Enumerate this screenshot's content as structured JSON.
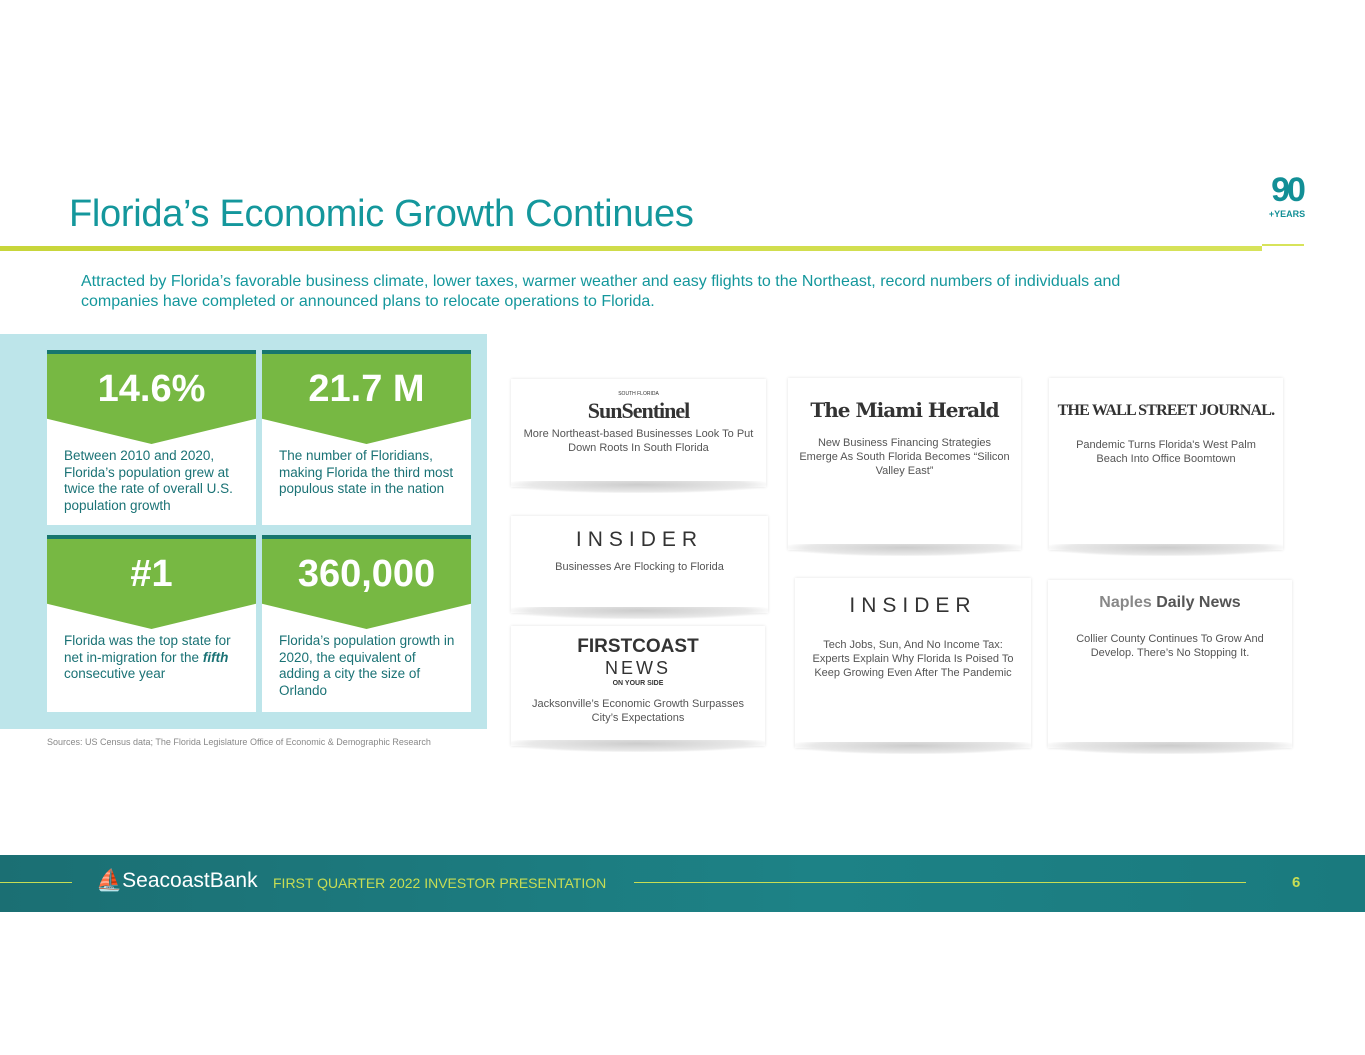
{
  "title": "Florida’s Economic Growth Continues",
  "badge": {
    "number": "90",
    "label": "+YEARS"
  },
  "intro": "Attracted by Florida’s favorable business climate, lower taxes, warmer weather and easy flights to the Northeast, record numbers of individuals and companies have completed or announced plans to relocate operations to Florida.",
  "stats": [
    {
      "value": "14.6%",
      "desc": "Between 2010 and 2020, Florida’s population grew at twice the rate of overall U.S. population growth"
    },
    {
      "value": "21.7 M",
      "desc": "The number of Floridians, making Florida the third most populous state in the nation"
    },
    {
      "value": "#1",
      "desc_pre": "Florida was the top state for net in-migration for the ",
      "desc_em": "fifth",
      "desc_post": " consecutive year"
    },
    {
      "value": "360,000",
      "desc": "Florida’s population growth in 2020, the equivalent of adding a city the size of Orlando"
    }
  ],
  "sources": "Sources: US Census data; The Florida Legislature Office of Economic & Demographic Research",
  "news": [
    {
      "outlet": "SunSentinel",
      "outlet_sub": "SOUTH FLORIDA",
      "headline": "More Northeast-based Businesses Look To Put Down Roots In South Florida"
    },
    {
      "outlet": "The Miami Herald",
      "headline": "New Business Financing Strategies Emerge As South Florida Becomes “Silicon Valley East”"
    },
    {
      "outlet": "THE WALL STREET JOURNAL.",
      "headline": "Pandemic Turns Florida's West Palm Beach Into Office Boomtown"
    },
    {
      "outlet": "INSIDER",
      "headline": "Businesses Are Flocking to Florida"
    },
    {
      "outlet": "FIRSTCOAST",
      "outlet_line2": "NEWS",
      "outlet_line3": "ON YOUR SIDE",
      "headline": "Jacksonville’s Economic Growth Surpasses City’s Expectations"
    },
    {
      "outlet": "INSIDER",
      "headline": "Tech Jobs, Sun, And No Income Tax: Experts Explain Why Florida Is Poised To Keep Growing Even After The Pandemic"
    },
    {
      "outlet": "Naples",
      "outlet_bold": "Daily News",
      "headline": "Collier County Continues To Grow And Develop. There’s No Stopping It."
    }
  ],
  "footer": {
    "brand": "SeacoastBank",
    "presentation": "FIRST QUARTER 2022 INVESTOR PRESENTATION",
    "page": "6"
  }
}
